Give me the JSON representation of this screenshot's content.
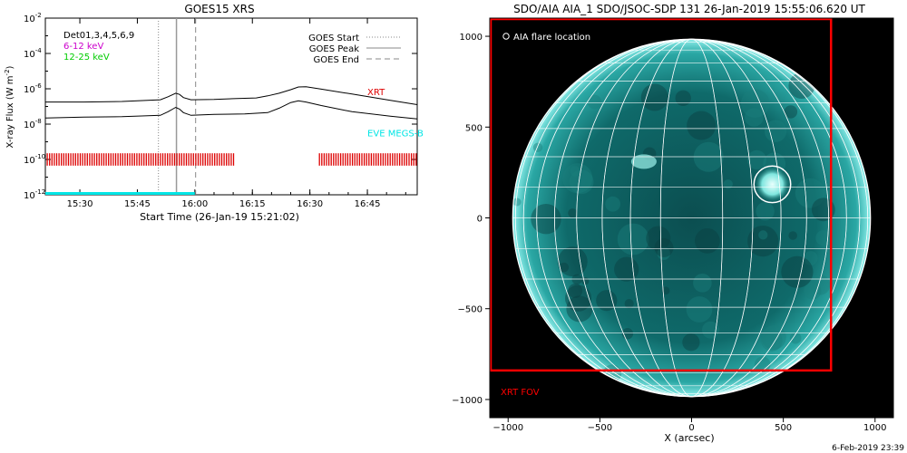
{
  "footer": {
    "timestamp": "6-Feb-2019 23:39"
  },
  "chart_data": [
    {
      "type": "line",
      "title": "GOES15 XRS",
      "xlabel": "Start Time (26-Jan-19 15:21:02)",
      "ylabel": "X-ray Flux (W m",
      "ylabel_sup": "-2",
      "ylabel_close": ")",
      "x_unit": "minutes",
      "xlim": [
        0,
        97
      ],
      "ylim_exp": [
        -12,
        -2
      ],
      "y_scale": "log",
      "x_ticks": [
        {
          "v": 9,
          "label": "15:30"
        },
        {
          "v": 24,
          "label": "15:45"
        },
        {
          "v": 39,
          "label": "16:00"
        },
        {
          "v": 54,
          "label": "16:15"
        },
        {
          "v": 69,
          "label": "16:30"
        },
        {
          "v": 84,
          "label": "16:45"
        }
      ],
      "y_ticks": [
        {
          "e": -12,
          "base": "10",
          "exp": "-12"
        },
        {
          "e": -10,
          "base": "10",
          "exp": "-10"
        },
        {
          "e": -8,
          "base": "10",
          "exp": "-8"
        },
        {
          "e": -6,
          "base": "10",
          "exp": "-6"
        },
        {
          "e": -4,
          "base": "10",
          "exp": "-4"
        },
        {
          "e": -2,
          "base": "10",
          "exp": "-2"
        }
      ],
      "legend_left": [
        {
          "text": "Det01,3,4,5,6,9",
          "color": "#000000"
        },
        {
          "text": "6-12 keV",
          "color": "#cc00cc"
        },
        {
          "text": "12-25 keV",
          "color": "#00cc00"
        }
      ],
      "legend_right": [
        {
          "text": "GOES Start",
          "style": "dotted"
        },
        {
          "text": "GOES Peak",
          "style": "solid"
        },
        {
          "text": "GOES End",
          "style": "dashed"
        }
      ],
      "vlines": {
        "start": 29.5,
        "peak": 34.2,
        "end": 39.2
      },
      "series": [
        {
          "color": "#000000",
          "points": [
            [
              0,
              -6.75
            ],
            [
              10,
              -6.75
            ],
            [
              20,
              -6.72
            ],
            [
              30,
              -6.62
            ],
            [
              32,
              -6.45
            ],
            [
              34,
              -6.25
            ],
            [
              35,
              -6.32
            ],
            [
              36,
              -6.5
            ],
            [
              38,
              -6.62
            ],
            [
              44,
              -6.6
            ],
            [
              50,
              -6.55
            ],
            [
              55,
              -6.52
            ],
            [
              58,
              -6.4
            ],
            [
              61,
              -6.25
            ],
            [
              64,
              -6.05
            ],
            [
              66,
              -5.9
            ],
            [
              68,
              -5.88
            ],
            [
              72,
              -6.02
            ],
            [
              80,
              -6.3
            ],
            [
              90,
              -6.65
            ],
            [
              97,
              -6.9
            ]
          ]
        },
        {
          "color": "#000000",
          "points": [
            [
              0,
              -7.65
            ],
            [
              10,
              -7.6
            ],
            [
              20,
              -7.58
            ],
            [
              30,
              -7.5
            ],
            [
              32,
              -7.3
            ],
            [
              34,
              -7.05
            ],
            [
              35,
              -7.15
            ],
            [
              36,
              -7.35
            ],
            [
              38,
              -7.5
            ],
            [
              44,
              -7.45
            ],
            [
              52,
              -7.42
            ],
            [
              58,
              -7.35
            ],
            [
              61,
              -7.1
            ],
            [
              64,
              -6.78
            ],
            [
              66,
              -6.68
            ],
            [
              68,
              -6.75
            ],
            [
              72,
              -6.95
            ],
            [
              80,
              -7.3
            ],
            [
              90,
              -7.55
            ],
            [
              97,
              -7.7
            ]
          ]
        }
      ],
      "labels": [
        {
          "text": "XRT",
          "color": "#dd0000",
          "x": 84,
          "e": -6.35
        },
        {
          "text": "EVE MEGS-B",
          "color": "#00e5e5",
          "x": 84,
          "e": -8.7
        }
      ],
      "coverage_bars": [
        {
          "x0": 0.5,
          "x1": 49.5,
          "color": "#dd0000"
        },
        {
          "x0": 71.5,
          "x1": 97,
          "color": "#dd0000"
        }
      ],
      "eve_segment": {
        "x0": 0,
        "x1": 39,
        "color": "#00e5e5"
      }
    },
    {
      "type": "image",
      "title": "SDO/AIA AIA_1 SDO/JSOC-SDP 131 26-Jan-2019 15:55:06.620 UT",
      "xlabel": "X (arcsec)",
      "xlim": [
        -1100,
        1100
      ],
      "ylim": [
        -1100,
        1100
      ],
      "x_ticks": [
        -1000,
        -500,
        0,
        500,
        1000
      ],
      "y_ticks": [
        -1000,
        -500,
        0,
        500,
        1000
      ],
      "legend": "AIA flare location",
      "solar_radius": 975,
      "flare": {
        "x": 440,
        "y": 185,
        "r": 100
      },
      "xrt_fov": {
        "x0": -1100,
        "x1": 760,
        "y0": -840,
        "y1": 1100,
        "label": "XRT FOV",
        "color": "#ff0000"
      },
      "grid_step_deg": 10
    }
  ]
}
